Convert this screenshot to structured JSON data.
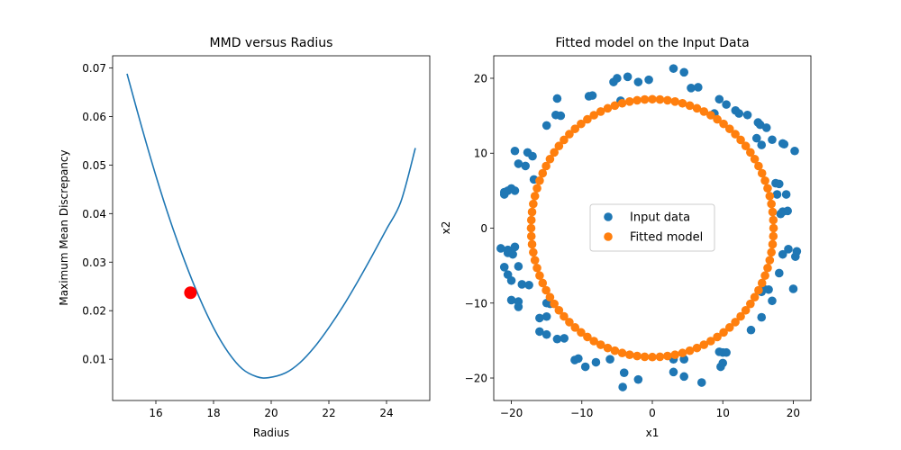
{
  "chart_data": [
    {
      "type": "line",
      "title": "MMD versus Radius",
      "xlabel": "Radius",
      "ylabel": "Maximum Mean Discrepancy",
      "xlim": [
        14.5,
        25.5
      ],
      "ylim": [
        0.0015,
        0.0725
      ],
      "xticks": [
        16,
        18,
        20,
        22,
        24
      ],
      "yticks": [
        0.01,
        0.02,
        0.03,
        0.04,
        0.05,
        0.06,
        0.07
      ],
      "xtick_labels": [
        "16",
        "18",
        "20",
        "22",
        "24"
      ],
      "ytick_labels": [
        "0.01",
        "0.02",
        "0.03",
        "0.04",
        "0.05",
        "0.06",
        "0.07"
      ],
      "series": [
        {
          "color": "#1f77b4",
          "x": [
            15.0,
            15.5,
            16.0,
            16.5,
            17.0,
            17.5,
            18.0,
            18.5,
            19.0,
            19.5,
            19.9,
            20.5,
            21.0,
            21.5,
            22.0,
            22.5,
            23.0,
            23.5,
            24.0,
            24.5,
            25.0
          ],
          "y": [
            0.0688,
            0.058,
            0.0478,
            0.0385,
            0.0302,
            0.0228,
            0.0165,
            0.0115,
            0.008,
            0.0064,
            0.0062,
            0.0072,
            0.0093,
            0.0125,
            0.0165,
            0.021,
            0.026,
            0.0313,
            0.0368,
            0.0425,
            0.0535
          ]
        }
      ],
      "highlight": {
        "x": 17.2,
        "y": 0.0237,
        "color": "#ff0000"
      },
      "grid": false
    },
    {
      "type": "scatter",
      "title": "Fitted model on the Input Data",
      "xlabel": "x1",
      "ylabel": "x2",
      "xlim": [
        -22.5,
        22.5
      ],
      "ylim": [
        -23.0,
        23.0
      ],
      "xticks": [
        -20,
        -10,
        0,
        10,
        20
      ],
      "yticks": [
        -20,
        -10,
        0,
        10,
        20
      ],
      "xtick_labels": [
        "−20",
        "−10",
        "0",
        "10",
        "20"
      ],
      "ytick_labels": [
        "−20",
        "−10",
        "0",
        "10",
        "20"
      ],
      "legend": {
        "position": "center",
        "entries": [
          "Input data",
          "Fitted model"
        ]
      },
      "series": [
        {
          "name": "Input data",
          "color": "#1f77b4",
          "points": [
            [
              -5.5,
              19.5
            ],
            [
              -5.0,
              20.0
            ],
            [
              -3.5,
              20.2
            ],
            [
              -2.0,
              19.5
            ],
            [
              -0.5,
              19.8
            ],
            [
              3.0,
              21.3
            ],
            [
              4.5,
              20.8
            ],
            [
              5.5,
              18.7
            ],
            [
              6.5,
              18.8
            ],
            [
              -9.0,
              17.6
            ],
            [
              -8.5,
              17.7
            ],
            [
              -13.5,
              17.3
            ],
            [
              -4.5,
              17.0
            ],
            [
              9.5,
              17.2
            ],
            [
              10.5,
              16.5
            ],
            [
              11.8,
              15.7
            ],
            [
              12.3,
              15.3
            ],
            [
              13.5,
              15.1
            ],
            [
              -13.7,
              15.1
            ],
            [
              -13.0,
              15.0
            ],
            [
              -15.0,
              13.7
            ],
            [
              8.8,
              15.3
            ],
            [
              15.0,
              14.1
            ],
            [
              15.3,
              13.8
            ],
            [
              16.2,
              13.4
            ],
            [
              14.8,
              12.0
            ],
            [
              17.0,
              11.8
            ],
            [
              15.5,
              11.1
            ],
            [
              18.5,
              11.3
            ],
            [
              18.7,
              11.2
            ],
            [
              20.2,
              10.3
            ],
            [
              -19.5,
              10.3
            ],
            [
              -17.7,
              10.1
            ],
            [
              -17.0,
              9.6
            ],
            [
              -19.0,
              8.6
            ],
            [
              -18.0,
              8.3
            ],
            [
              -16.8,
              6.5
            ],
            [
              -20.5,
              5.0
            ],
            [
              -20.0,
              5.3
            ],
            [
              -19.5,
              5.0
            ],
            [
              -21.0,
              4.5
            ],
            [
              -21.0,
              4.8
            ],
            [
              17.5,
              6.0
            ],
            [
              18.0,
              5.9
            ],
            [
              17.7,
              4.5
            ],
            [
              19.0,
              4.5
            ],
            [
              18.5,
              2.2
            ],
            [
              19.2,
              2.3
            ],
            [
              18.2,
              1.9
            ],
            [
              -21.5,
              -2.7
            ],
            [
              -20.5,
              -2.9
            ],
            [
              -20.5,
              -3.3
            ],
            [
              -19.5,
              -2.5
            ],
            [
              -19.8,
              -3.5
            ],
            [
              -21.0,
              -5.2
            ],
            [
              -19.0,
              -5.1
            ],
            [
              19.3,
              -2.8
            ],
            [
              18.5,
              -3.5
            ],
            [
              20.3,
              -3.8
            ],
            [
              20.5,
              -3.1
            ],
            [
              18.0,
              -6.0
            ],
            [
              -20.5,
              -6.2
            ],
            [
              -20.0,
              -7.0
            ],
            [
              -18.5,
              -7.5
            ],
            [
              -17.5,
              -7.6
            ],
            [
              20.0,
              -8.1
            ],
            [
              16.5,
              -8.2
            ],
            [
              15.8,
              -8.1
            ],
            [
              15.5,
              -8.5
            ],
            [
              -20.0,
              -9.6
            ],
            [
              -19.0,
              -9.8
            ],
            [
              -19.0,
              -10.5
            ],
            [
              17.0,
              -9.7
            ],
            [
              -15.0,
              -10.0
            ],
            [
              -14.5,
              -10.1
            ],
            [
              -16.0,
              -12.0
            ],
            [
              -15.0,
              -11.8
            ],
            [
              15.5,
              -11.9
            ],
            [
              -16.0,
              -13.8
            ],
            [
              -15.0,
              -14.2
            ],
            [
              -13.5,
              -14.8
            ],
            [
              -12.5,
              -14.7
            ],
            [
              14.0,
              -13.6
            ],
            [
              -11.0,
              -17.6
            ],
            [
              -10.5,
              -17.4
            ],
            [
              -9.5,
              -18.5
            ],
            [
              -8.0,
              -17.9
            ],
            [
              -6.0,
              -17.5
            ],
            [
              9.5,
              -16.5
            ],
            [
              10.0,
              -16.6
            ],
            [
              10.5,
              -16.6
            ],
            [
              9.7,
              -18.5
            ],
            [
              10.0,
              -18.0
            ],
            [
              -4.0,
              -19.3
            ],
            [
              3.0,
              -17.5
            ],
            [
              4.5,
              -17.5
            ],
            [
              3.0,
              -19.2
            ],
            [
              4.5,
              -19.8
            ],
            [
              7.0,
              -20.6
            ],
            [
              -2.0,
              -20.2
            ],
            [
              -4.2,
              -21.2
            ]
          ]
        },
        {
          "name": "Fitted model",
          "color": "#ff7f0e",
          "circle": {
            "cx": 0,
            "cy": 0,
            "r": 17.2,
            "n": 100
          }
        }
      ]
    }
  ]
}
